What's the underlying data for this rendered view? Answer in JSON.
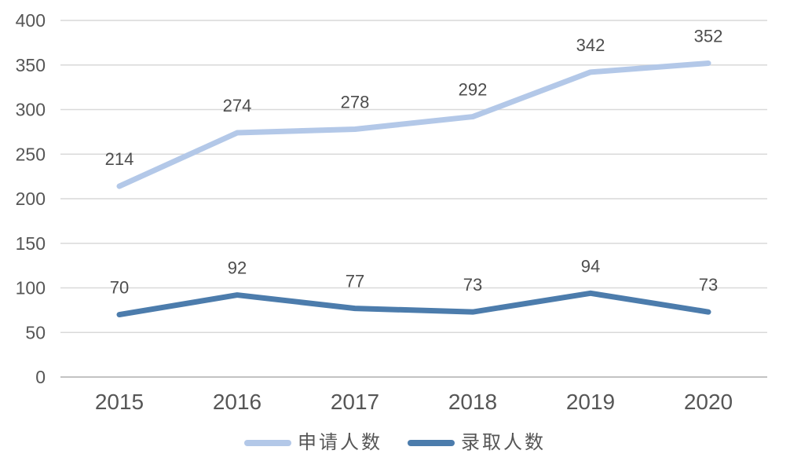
{
  "chart_data": {
    "type": "line",
    "title": "",
    "xlabel": "",
    "ylabel": "",
    "categories": [
      "2015",
      "2016",
      "2017",
      "2018",
      "2019",
      "2020"
    ],
    "series": [
      {
        "name": "申请人数",
        "values": [
          214,
          274,
          278,
          292,
          342,
          352
        ],
        "color": "#B3C8E8"
      },
      {
        "name": "录取人数",
        "values": [
          70,
          92,
          77,
          73,
          94,
          73
        ],
        "color": "#4C7CAC"
      }
    ],
    "ylim": [
      0,
      400
    ],
    "yticks": [
      0,
      50,
      100,
      150,
      200,
      250,
      300,
      350,
      400
    ],
    "grid": "horizontal",
    "gridline_color": "#D9D9D9",
    "axis_line_color": "#C3C3C3",
    "data_labels": true,
    "legend_position": "bottom"
  },
  "legend": {
    "items": [
      {
        "label": "申请人数",
        "color": "#B3C8E8"
      },
      {
        "label": "录取人数",
        "color": "#4C7CAC"
      }
    ]
  }
}
